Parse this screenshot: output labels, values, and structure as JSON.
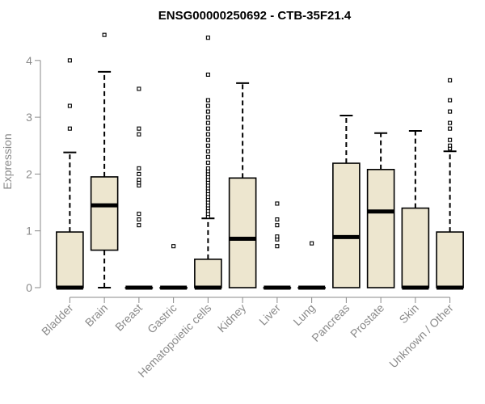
{
  "chart_data": {
    "type": "box",
    "title": "ENSG00000250692 - CTB-35F21.4",
    "xlabel": "",
    "ylabel": "Expression",
    "ylim": [
      0,
      4.5
    ],
    "yticks": [
      0,
      1,
      2,
      3,
      4
    ],
    "grid": false,
    "box_color": "#ede6cf",
    "categories": [
      "Bladder",
      "Brain",
      "Breast",
      "Gastric",
      "Hematopoietic cells",
      "Kidney",
      "Liver",
      "Lung",
      "Pancreas",
      "Prostate",
      "Skin",
      "Unknown / Other"
    ],
    "series": [
      {
        "name": "Bladder",
        "whisker_low": 0,
        "q1": 0,
        "median": 0,
        "q3": 0.98,
        "whisker_high": 2.38,
        "outliers": [
          2.8,
          3.2,
          4.0
        ]
      },
      {
        "name": "Brain",
        "whisker_low": 0,
        "q1": 0.66,
        "median": 1.45,
        "q3": 1.95,
        "whisker_high": 3.8,
        "outliers": [
          4.45
        ]
      },
      {
        "name": "Breast",
        "whisker_low": 0,
        "q1": 0,
        "median": 0,
        "q3": 0,
        "whisker_high": 0,
        "outliers": [
          1.1,
          1.2,
          1.3,
          1.8,
          1.85,
          1.9,
          2.0,
          2.1,
          2.7,
          2.8,
          3.5
        ]
      },
      {
        "name": "Gastric",
        "whisker_low": 0,
        "q1": 0,
        "median": 0,
        "q3": 0,
        "whisker_high": 0,
        "outliers": [
          0.73
        ]
      },
      {
        "name": "Hematopoietic cells",
        "whisker_low": 0,
        "q1": 0,
        "median": 0,
        "q3": 0.5,
        "whisker_high": 1.22,
        "outliers": [
          1.25,
          1.3,
          1.35,
          1.4,
          1.45,
          1.5,
          1.55,
          1.6,
          1.65,
          1.7,
          1.75,
          1.8,
          1.85,
          1.9,
          1.95,
          2.0,
          2.05,
          2.1,
          2.2,
          2.3,
          2.4,
          2.5,
          2.6,
          2.7,
          2.8,
          2.9,
          3.0,
          3.1,
          3.2,
          3.3,
          3.75,
          4.4
        ]
      },
      {
        "name": "Kidney",
        "whisker_low": 0,
        "q1": 0,
        "median": 0.86,
        "q3": 1.93,
        "whisker_high": 3.6,
        "outliers": []
      },
      {
        "name": "Liver",
        "whisker_low": 0,
        "q1": 0,
        "median": 0,
        "q3": 0,
        "whisker_high": 0,
        "outliers": [
          0.73,
          0.85,
          0.9,
          1.1,
          1.2,
          1.48
        ]
      },
      {
        "name": "Lung",
        "whisker_low": 0,
        "q1": 0,
        "median": 0,
        "q3": 0,
        "whisker_high": 0,
        "outliers": [
          0.78
        ]
      },
      {
        "name": "Pancreas",
        "whisker_low": 0,
        "q1": 0,
        "median": 0.89,
        "q3": 2.19,
        "whisker_high": 3.03,
        "outliers": []
      },
      {
        "name": "Prostate",
        "whisker_low": 0,
        "q1": 0,
        "median": 1.34,
        "q3": 2.08,
        "whisker_high": 2.72,
        "outliers": []
      },
      {
        "name": "Skin",
        "whisker_low": 0,
        "q1": 0,
        "median": 0,
        "q3": 1.4,
        "whisker_high": 2.76,
        "outliers": []
      },
      {
        "name": "Unknown / Other",
        "whisker_low": 0,
        "q1": 0,
        "median": 0,
        "q3": 0.98,
        "whisker_high": 2.4,
        "outliers": [
          2.45,
          2.5,
          2.6,
          2.8,
          2.9,
          3.1,
          3.3,
          3.65
        ]
      }
    ]
  }
}
